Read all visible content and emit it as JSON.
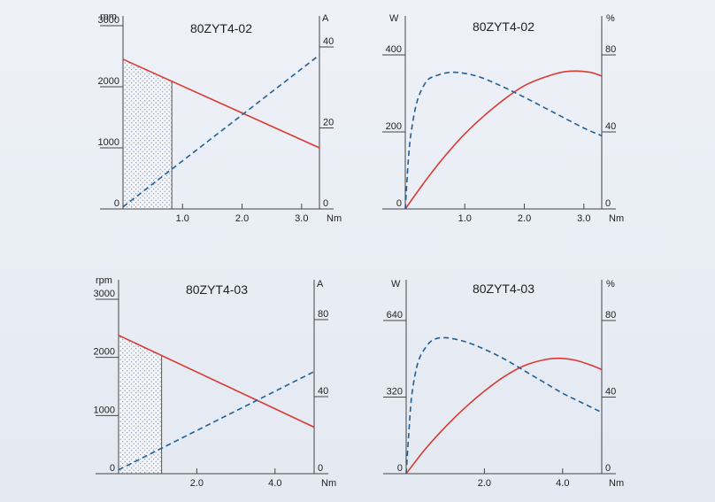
{
  "chart_data": [
    {
      "type": "line",
      "title": "80ZYT4-02",
      "left_unit": "rpm",
      "right_unit": "A",
      "x_unit": "Nm",
      "xlim": [
        0,
        3.3
      ],
      "ylim_left": [
        0,
        3000
      ],
      "ylim_right": [
        0,
        40
      ],
      "x_ticks": [
        1.0,
        2.0,
        3.0
      ],
      "x_tick_labels": [
        "1.0",
        "2.0",
        "3.0"
      ],
      "left_ticks": [
        0,
        1000,
        2000,
        3000
      ],
      "left_tick_labels": [
        "0",
        "1000",
        "2000",
        "3000"
      ],
      "right_ticks": [
        0,
        20,
        40
      ],
      "right_tick_labels": [
        "0",
        "20",
        "40"
      ],
      "shaded_region": [
        0,
        0.82
      ],
      "series": [
        {
          "axis": "left",
          "style": "solid",
          "color": "#d93a32",
          "x": [
            0,
            3.3
          ],
          "y": [
            2450,
            1000
          ]
        },
        {
          "axis": "right",
          "style": "dashed",
          "color": "#1f5f9a",
          "x": [
            0,
            3.3
          ],
          "y": [
            0.5,
            38
          ]
        }
      ]
    },
    {
      "type": "line",
      "title": "80ZYT4-02",
      "left_unit": "W",
      "right_unit": "%",
      "x_unit": "Nm",
      "xlim": [
        0,
        3.3
      ],
      "ylim_left": [
        0,
        400
      ],
      "ylim_right": [
        0,
        80
      ],
      "x_ticks": [
        1.0,
        2.0,
        3.0
      ],
      "x_tick_labels": [
        "1.0",
        "2.0",
        "3.0"
      ],
      "left_ticks": [
        0,
        200,
        400
      ],
      "left_tick_labels": [
        "0",
        "200",
        "400"
      ],
      "right_ticks": [
        0,
        40,
        80
      ],
      "right_tick_labels": [
        "0",
        "40",
        "80"
      ],
      "series": [
        {
          "axis": "left",
          "style": "solid",
          "color": "#d93a32",
          "x": [
            0,
            0.3,
            0.6,
            1.0,
            1.5,
            2.0,
            2.5,
            2.8,
            3.1,
            3.3
          ],
          "y": [
            0,
            65,
            125,
            195,
            265,
            320,
            350,
            358,
            355,
            345
          ]
        },
        {
          "axis": "right",
          "style": "dashed",
          "color": "#1f5f9a",
          "x": [
            0,
            0.05,
            0.1,
            0.2,
            0.35,
            0.5,
            0.8,
            1.2,
            1.6,
            2.0,
            2.5,
            3.0,
            3.3
          ],
          "y": [
            0,
            25,
            40,
            56,
            66,
            69,
            71,
            69,
            64,
            58,
            50,
            42,
            38
          ]
        }
      ]
    },
    {
      "type": "line",
      "title": "80ZYT4-03",
      "left_unit": "rpm",
      "right_unit": "A",
      "x_unit": "Nm",
      "xlim": [
        0,
        5.0
      ],
      "ylim_left": [
        0,
        3000
      ],
      "ylim_right": [
        0,
        80
      ],
      "x_ticks": [
        2.0,
        4.0
      ],
      "x_tick_labels": [
        "2.0",
        "4.0"
      ],
      "left_ticks": [
        0,
        1000,
        2000,
        3000
      ],
      "left_tick_labels": [
        "0",
        "1000",
        "2000",
        "3000"
      ],
      "right_ticks": [
        0,
        40,
        80
      ],
      "right_tick_labels": [
        "0",
        "40",
        "80"
      ],
      "shaded_region": [
        0,
        1.1
      ],
      "series": [
        {
          "axis": "left",
          "style": "solid",
          "color": "#d93a32",
          "x": [
            0,
            5.0
          ],
          "y": [
            2380,
            800
          ]
        },
        {
          "axis": "right",
          "style": "dashed",
          "color": "#1f5f9a",
          "x": [
            0,
            5.0
          ],
          "y": [
            2,
            53
          ]
        }
      ]
    },
    {
      "type": "line",
      "title": "80ZYT4-03",
      "left_unit": "W",
      "right_unit": "%",
      "x_unit": "Nm",
      "xlim": [
        0,
        5.0
      ],
      "ylim_left": [
        0,
        640
      ],
      "ylim_right": [
        0,
        80
      ],
      "x_ticks": [
        2.0,
        4.0
      ],
      "x_tick_labels": [
        "2.0",
        "4.0"
      ],
      "left_ticks": [
        0,
        320,
        640
      ],
      "left_tick_labels": [
        "0",
        "320",
        "640"
      ],
      "right_ticks": [
        0,
        40,
        80
      ],
      "right_tick_labels": [
        "0",
        "40",
        "80"
      ],
      "series": [
        {
          "axis": "left",
          "style": "solid",
          "color": "#d93a32",
          "x": [
            0,
            0.5,
            1.0,
            1.5,
            2.0,
            2.5,
            3.0,
            3.5,
            3.9,
            4.3,
            4.7,
            5.0
          ],
          "y": [
            0,
            105,
            195,
            275,
            345,
            405,
            450,
            475,
            482,
            475,
            455,
            435
          ]
        },
        {
          "axis": "right",
          "style": "dashed",
          "color": "#1f5f9a",
          "x": [
            0,
            0.08,
            0.15,
            0.3,
            0.5,
            0.7,
            1.0,
            1.5,
            2.0,
            2.5,
            3.0,
            3.5,
            4.0,
            4.5,
            5.0
          ],
          "y": [
            0,
            25,
            42,
            58,
            66,
            70,
            71,
            69,
            65,
            60,
            54,
            48,
            42,
            37,
            32
          ]
        }
      ]
    }
  ]
}
